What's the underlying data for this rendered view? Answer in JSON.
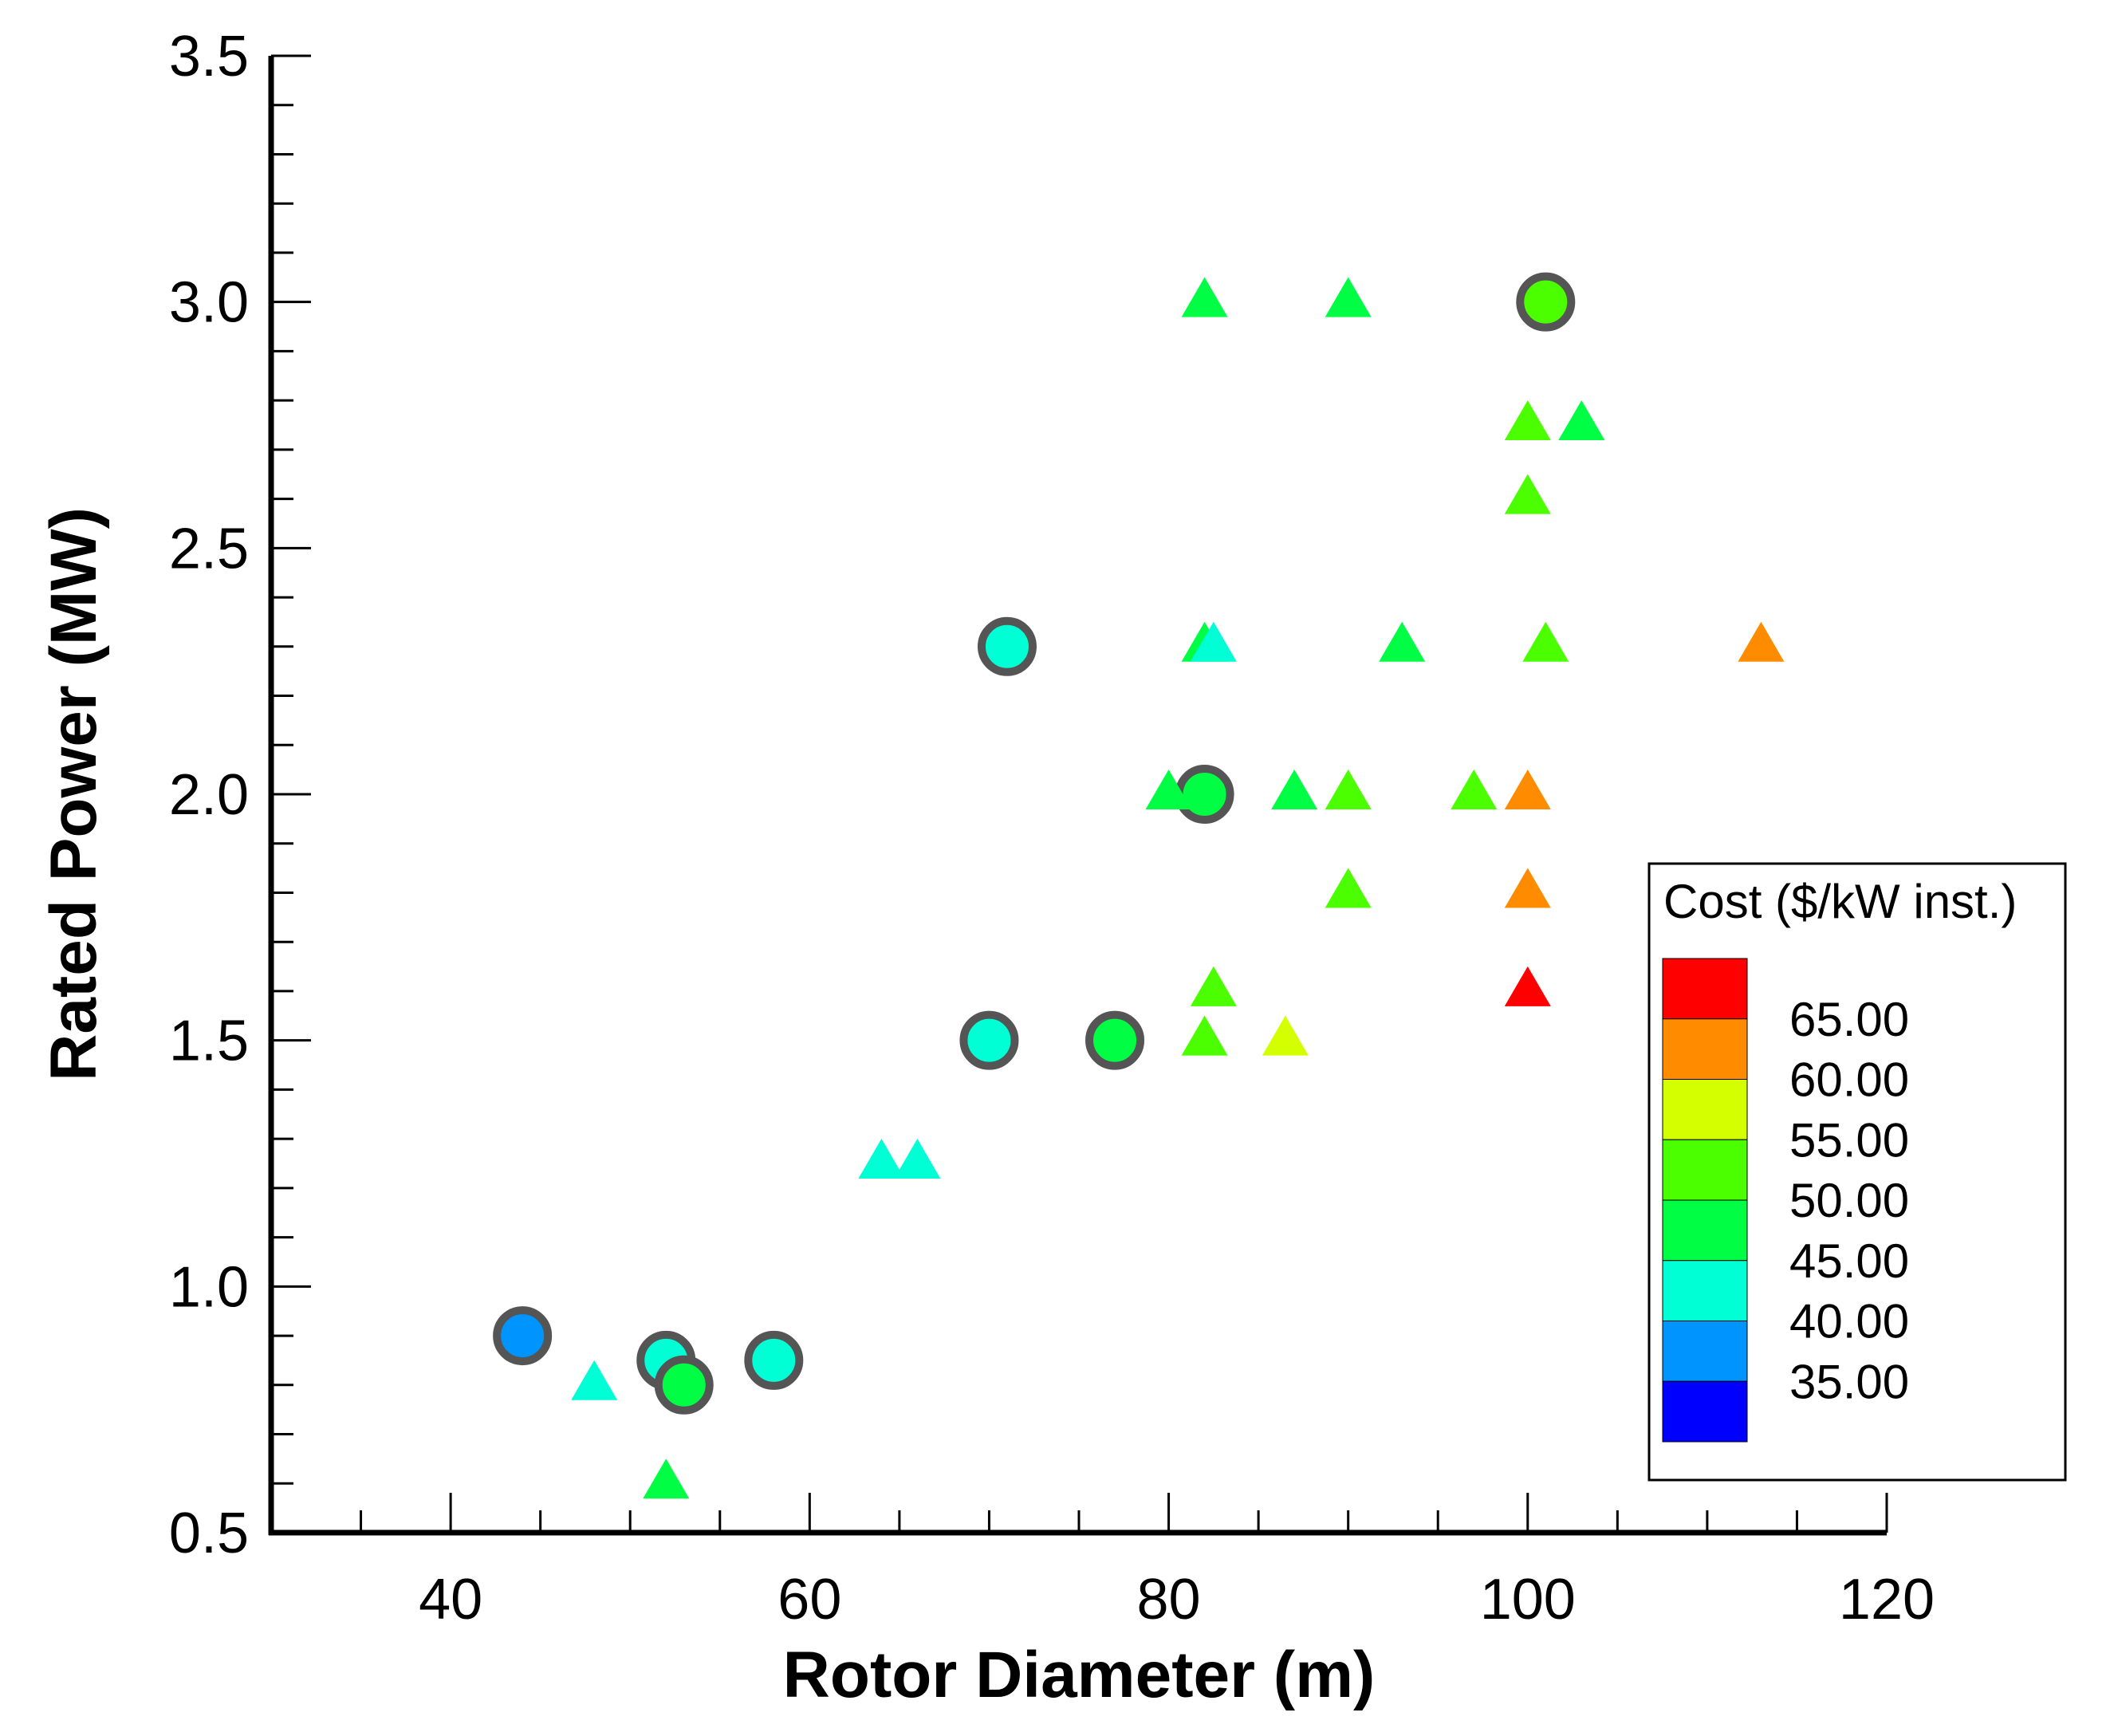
{
  "chart_data": {
    "type": "scatter",
    "title": "",
    "xlabel": "Rotor Diameter (m)",
    "ylabel": "Rated Power (MW)",
    "xlim": [
      30,
      120
    ],
    "ylim": [
      0.5,
      3.5
    ],
    "x_major_ticks": [
      40,
      60,
      80,
      100,
      120
    ],
    "x_tick_labels": [
      "40",
      "60",
      "80",
      "100",
      "120"
    ],
    "x_minor_step": 5,
    "y_major_ticks": [
      0.5,
      1.0,
      1.5,
      2.0,
      2.5,
      3.0,
      3.5
    ],
    "y_tick_labels": [
      "0.5",
      "1.0",
      "1.5",
      "2.0",
      "2.5",
      "3.0",
      "3.5"
    ],
    "y_minor_step": 0.1,
    "grid": false,
    "colorbar": {
      "title": "Cost ($/kW inst.)",
      "placement": "right",
      "levels": [
        "65.00",
        "60.00",
        "55.00",
        "50.00",
        "45.00",
        "40.00",
        "35.00"
      ],
      "colors": [
        "#ff0000",
        "#ff8c00",
        "#d4ff00",
        "#4cff00",
        "#00ff44",
        "#00ffd5",
        "#0094ff",
        "#0000ff"
      ]
    },
    "series": [
      {
        "name": "circles",
        "marker": "circle",
        "edge_color": "#555555",
        "points": [
          {
            "x": 44,
            "y": 0.9,
            "color": "#0094ff"
          },
          {
            "x": 52,
            "y": 0.85,
            "color": "#00ffd5"
          },
          {
            "x": 53,
            "y": 0.8,
            "color": "#00ff44"
          },
          {
            "x": 58,
            "y": 0.85,
            "color": "#00ffd5"
          },
          {
            "x": 70,
            "y": 1.5,
            "color": "#00ffd5"
          },
          {
            "x": 71,
            "y": 2.3,
            "color": "#00ffd5"
          },
          {
            "x": 77,
            "y": 1.5,
            "color": "#00ff44"
          },
          {
            "x": 82,
            "y": 2.0,
            "color": "#00ff44"
          },
          {
            "x": 101,
            "y": 3.0,
            "color": "#4cff00"
          }
        ]
      },
      {
        "name": "triangles",
        "marker": "triangle",
        "points": [
          {
            "x": 48,
            "y": 0.8,
            "color": "#00ffd5"
          },
          {
            "x": 52,
            "y": 0.6,
            "color": "#00ff44"
          },
          {
            "x": 64,
            "y": 1.25,
            "color": "#00ffd5"
          },
          {
            "x": 66,
            "y": 1.25,
            "color": "#00ffd5"
          },
          {
            "x": 82,
            "y": 3.0,
            "color": "#00ff44"
          },
          {
            "x": 90,
            "y": 3.0,
            "color": "#00ff44"
          },
          {
            "x": 100,
            "y": 2.75,
            "color": "#4cff00"
          },
          {
            "x": 103,
            "y": 2.75,
            "color": "#00ff44"
          },
          {
            "x": 100,
            "y": 2.6,
            "color": "#4cff00"
          },
          {
            "x": 82,
            "y": 2.3,
            "color": "#00ff44"
          },
          {
            "x": 82.5,
            "y": 2.3,
            "color": "#00ffd5"
          },
          {
            "x": 93,
            "y": 2.3,
            "color": "#00ff44"
          },
          {
            "x": 101,
            "y": 2.3,
            "color": "#4cff00"
          },
          {
            "x": 113,
            "y": 2.3,
            "color": "#ff8c00"
          },
          {
            "x": 80,
            "y": 2.0,
            "color": "#00ff44"
          },
          {
            "x": 87,
            "y": 2.0,
            "color": "#00ff44"
          },
          {
            "x": 90,
            "y": 2.0,
            "color": "#4cff00"
          },
          {
            "x": 97,
            "y": 2.0,
            "color": "#4cff00"
          },
          {
            "x": 100,
            "y": 2.0,
            "color": "#ff8c00"
          },
          {
            "x": 90,
            "y": 1.8,
            "color": "#4cff00"
          },
          {
            "x": 100,
            "y": 1.8,
            "color": "#ff8c00"
          },
          {
            "x": 82.5,
            "y": 1.6,
            "color": "#4cff00"
          },
          {
            "x": 100,
            "y": 1.6,
            "color": "#ff0000"
          },
          {
            "x": 82,
            "y": 1.5,
            "color": "#4cff00"
          },
          {
            "x": 86.5,
            "y": 1.5,
            "color": "#d4ff00"
          }
        ]
      }
    ]
  }
}
